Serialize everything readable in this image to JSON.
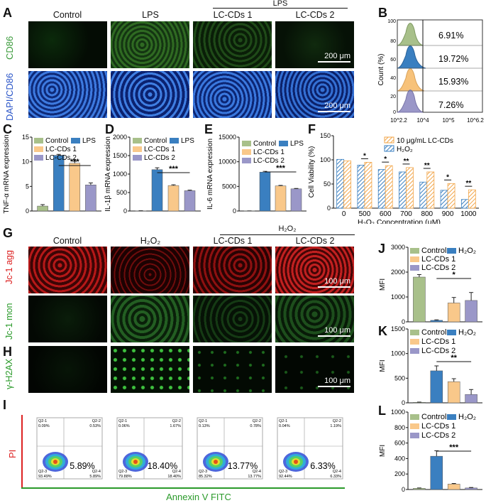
{
  "panels": {
    "A": "A",
    "B": "B",
    "C": "C",
    "D": "D",
    "E": "E",
    "F": "F",
    "G": "G",
    "H": "H",
    "I": "I",
    "J": "J",
    "K": "K",
    "L": "L"
  },
  "panelA": {
    "group_label": "LPS",
    "columns": [
      "Control",
      "LPS",
      "LC-CDs 1",
      "LC-CDs 2"
    ],
    "row_labels": [
      "CD86",
      "DAPI/CD86"
    ],
    "scale_bar": "200 μm"
  },
  "panelB": {
    "ylabel": "Count (%)",
    "yticks": [
      "100",
      "80",
      "60",
      "40",
      "20",
      "0"
    ],
    "xticks": [
      "10^2.2",
      "10^4",
      "10^5",
      "10^6.2"
    ],
    "percentages": [
      "6.91%",
      "19.72%",
      "15.93%",
      "7.26%"
    ],
    "colors": [
      "#a8c08a",
      "#3a7fc0",
      "#f7c27a",
      "#9a97c8"
    ]
  },
  "legend_labels": {
    "control": "Control",
    "lps": "LPS",
    "lc1": "LC-CDs 1",
    "lc2": "LC-CDs 2",
    "h2o2": "H₂O₂",
    "lccds_conc": "10 μg/mL LC-CDs"
  },
  "sig": {
    "three": "***",
    "two": "**",
    "one": "*"
  },
  "colors": {
    "control": "#a8c08a",
    "lps": "#3a7fc0",
    "lc1": "#f9c88a",
    "lc2": "#9a97c8",
    "h2o2": "#3a7fc0"
  },
  "chart_data": [
    {
      "id": "C",
      "type": "bar",
      "ylabel": "TNF-α mRNA expression",
      "categories": [
        "Control",
        "LPS",
        "LC-CDs 1",
        "LC-CDs 2"
      ],
      "values": [
        1,
        11.3,
        9.7,
        5.3
      ],
      "errors": [
        0.3,
        0.2,
        0.4,
        0.4
      ],
      "ylim": [
        0,
        15
      ],
      "yticks": [
        0,
        5,
        10,
        15
      ]
    },
    {
      "id": "D",
      "type": "bar",
      "ylabel": "IL-1β mRNA expression",
      "categories": [
        "Control",
        "LPS",
        "LC-CDs 1",
        "LC-CDs 2"
      ],
      "values": [
        5,
        1120,
        690,
        550
      ],
      "errors": [
        2,
        50,
        20,
        15
      ],
      "ylim": [
        0,
        2000
      ],
      "yticks": [
        0,
        500,
        1000,
        1500,
        2000
      ]
    },
    {
      "id": "E",
      "type": "bar",
      "ylabel": "IL-6 mRNA expression",
      "categories": [
        "Control",
        "LPS",
        "LC-CDs 1",
        "LC-CDs 2"
      ],
      "values": [
        20,
        7900,
        5100,
        4500
      ],
      "errors": [
        5,
        150,
        100,
        80
      ],
      "ylim": [
        0,
        15000
      ],
      "yticks": [
        0,
        5000,
        10000,
        15000
      ]
    },
    {
      "id": "F",
      "type": "bar",
      "ylabel": "Cell Viability (%)",
      "xlabel": "H₂O₂ Concentration (μM)",
      "categories": [
        "0",
        "500",
        "600",
        "700",
        "800",
        "900",
        "1000"
      ],
      "series": [
        {
          "name": "H₂O₂",
          "values": [
            101,
            89,
            80,
            75,
            54,
            37,
            18
          ]
        },
        {
          "name": "10 μg/mL LC-CDs",
          "values": [
            98,
            95,
            88,
            84,
            75,
            51,
            38
          ]
        }
      ],
      "ylim": [
        0,
        150
      ],
      "yticks": [
        0,
        50,
        100,
        150
      ],
      "significance": [
        "",
        "*",
        "*",
        "**",
        "**",
        "*",
        "**"
      ]
    },
    {
      "id": "J",
      "type": "bar",
      "ylabel": "MFI",
      "categories": [
        "Control",
        "H₂O₂",
        "LC-CDs 1",
        "LC-CDs 2"
      ],
      "values": [
        1800,
        60,
        760,
        860
      ],
      "errors": [
        100,
        20,
        220,
        320
      ],
      "ylim": [
        0,
        3000
      ],
      "yticks": [
        0,
        1000,
        2000,
        3000
      ]
    },
    {
      "id": "K",
      "type": "bar",
      "ylabel": "MFI",
      "categories": [
        "Control",
        "H₂O₂",
        "LC-CDs 1",
        "LC-CDs 2"
      ],
      "values": [
        10,
        650,
        430,
        170
      ],
      "errors": [
        5,
        100,
        60,
        100
      ],
      "ylim": [
        0,
        1500
      ],
      "yticks": [
        0,
        500,
        1000,
        1500
      ]
    },
    {
      "id": "L",
      "type": "bar",
      "ylabel": "MFI",
      "categories": [
        "Control",
        "H₂O₂",
        "LC-CDs 1",
        "LC-CDs 2"
      ],
      "values": [
        15,
        430,
        70,
        20
      ],
      "errors": [
        5,
        70,
        8,
        6
      ],
      "ylim": [
        0,
        1000
      ],
      "yticks": [
        0,
        200,
        400,
        600,
        800,
        1000
      ]
    }
  ],
  "panelG": {
    "group_label": "H₂O₂",
    "columns": [
      "Control",
      "H₂O₂",
      "LC-CDs 1",
      "LC-CDs 2"
    ],
    "row_labels": [
      "Jc-1 agg",
      "Jc-1 mon"
    ],
    "scale_bar": "100 μm"
  },
  "panelH": {
    "row_label": "γ-H2AX",
    "scale_bar": "100 μm"
  },
  "panelI": {
    "ylabel": "PI",
    "xlabel": "Annexin V FITC",
    "plots": [
      {
        "q1": "Q2-1",
        "q1v": "0.09%",
        "q2": "Q2-2",
        "q2v": "0.53%",
        "q3": "Q2-3",
        "q3v": "93.49%",
        "q4": "Q2-4",
        "q4v": "5.89%",
        "big": "5.89%"
      },
      {
        "q1": "Q2-1",
        "q1v": "0.06%",
        "q2": "Q2-2",
        "q2v": "1.67%",
        "q3": "Q2-3",
        "q3v": "79.88%",
        "q4": "Q2-4",
        "q4v": "18.40%",
        "big": "18.40%"
      },
      {
        "q1": "Q2-1",
        "q1v": "0.13%",
        "q2": "Q2-2",
        "q2v": "0.78%",
        "q3": "Q2-3",
        "q3v": "85.32%",
        "q4": "Q2-4",
        "q4v": "13.77%",
        "big": "13.77%"
      },
      {
        "q1": "Q2-1",
        "q1v": "0.04%",
        "q2": "Q2-2",
        "q2v": "1.19%",
        "q3": "Q2-3",
        "q3v": "92.44%",
        "q4": "Q2-4",
        "q4v": "6.33%",
        "big": "6.33%"
      }
    ]
  }
}
